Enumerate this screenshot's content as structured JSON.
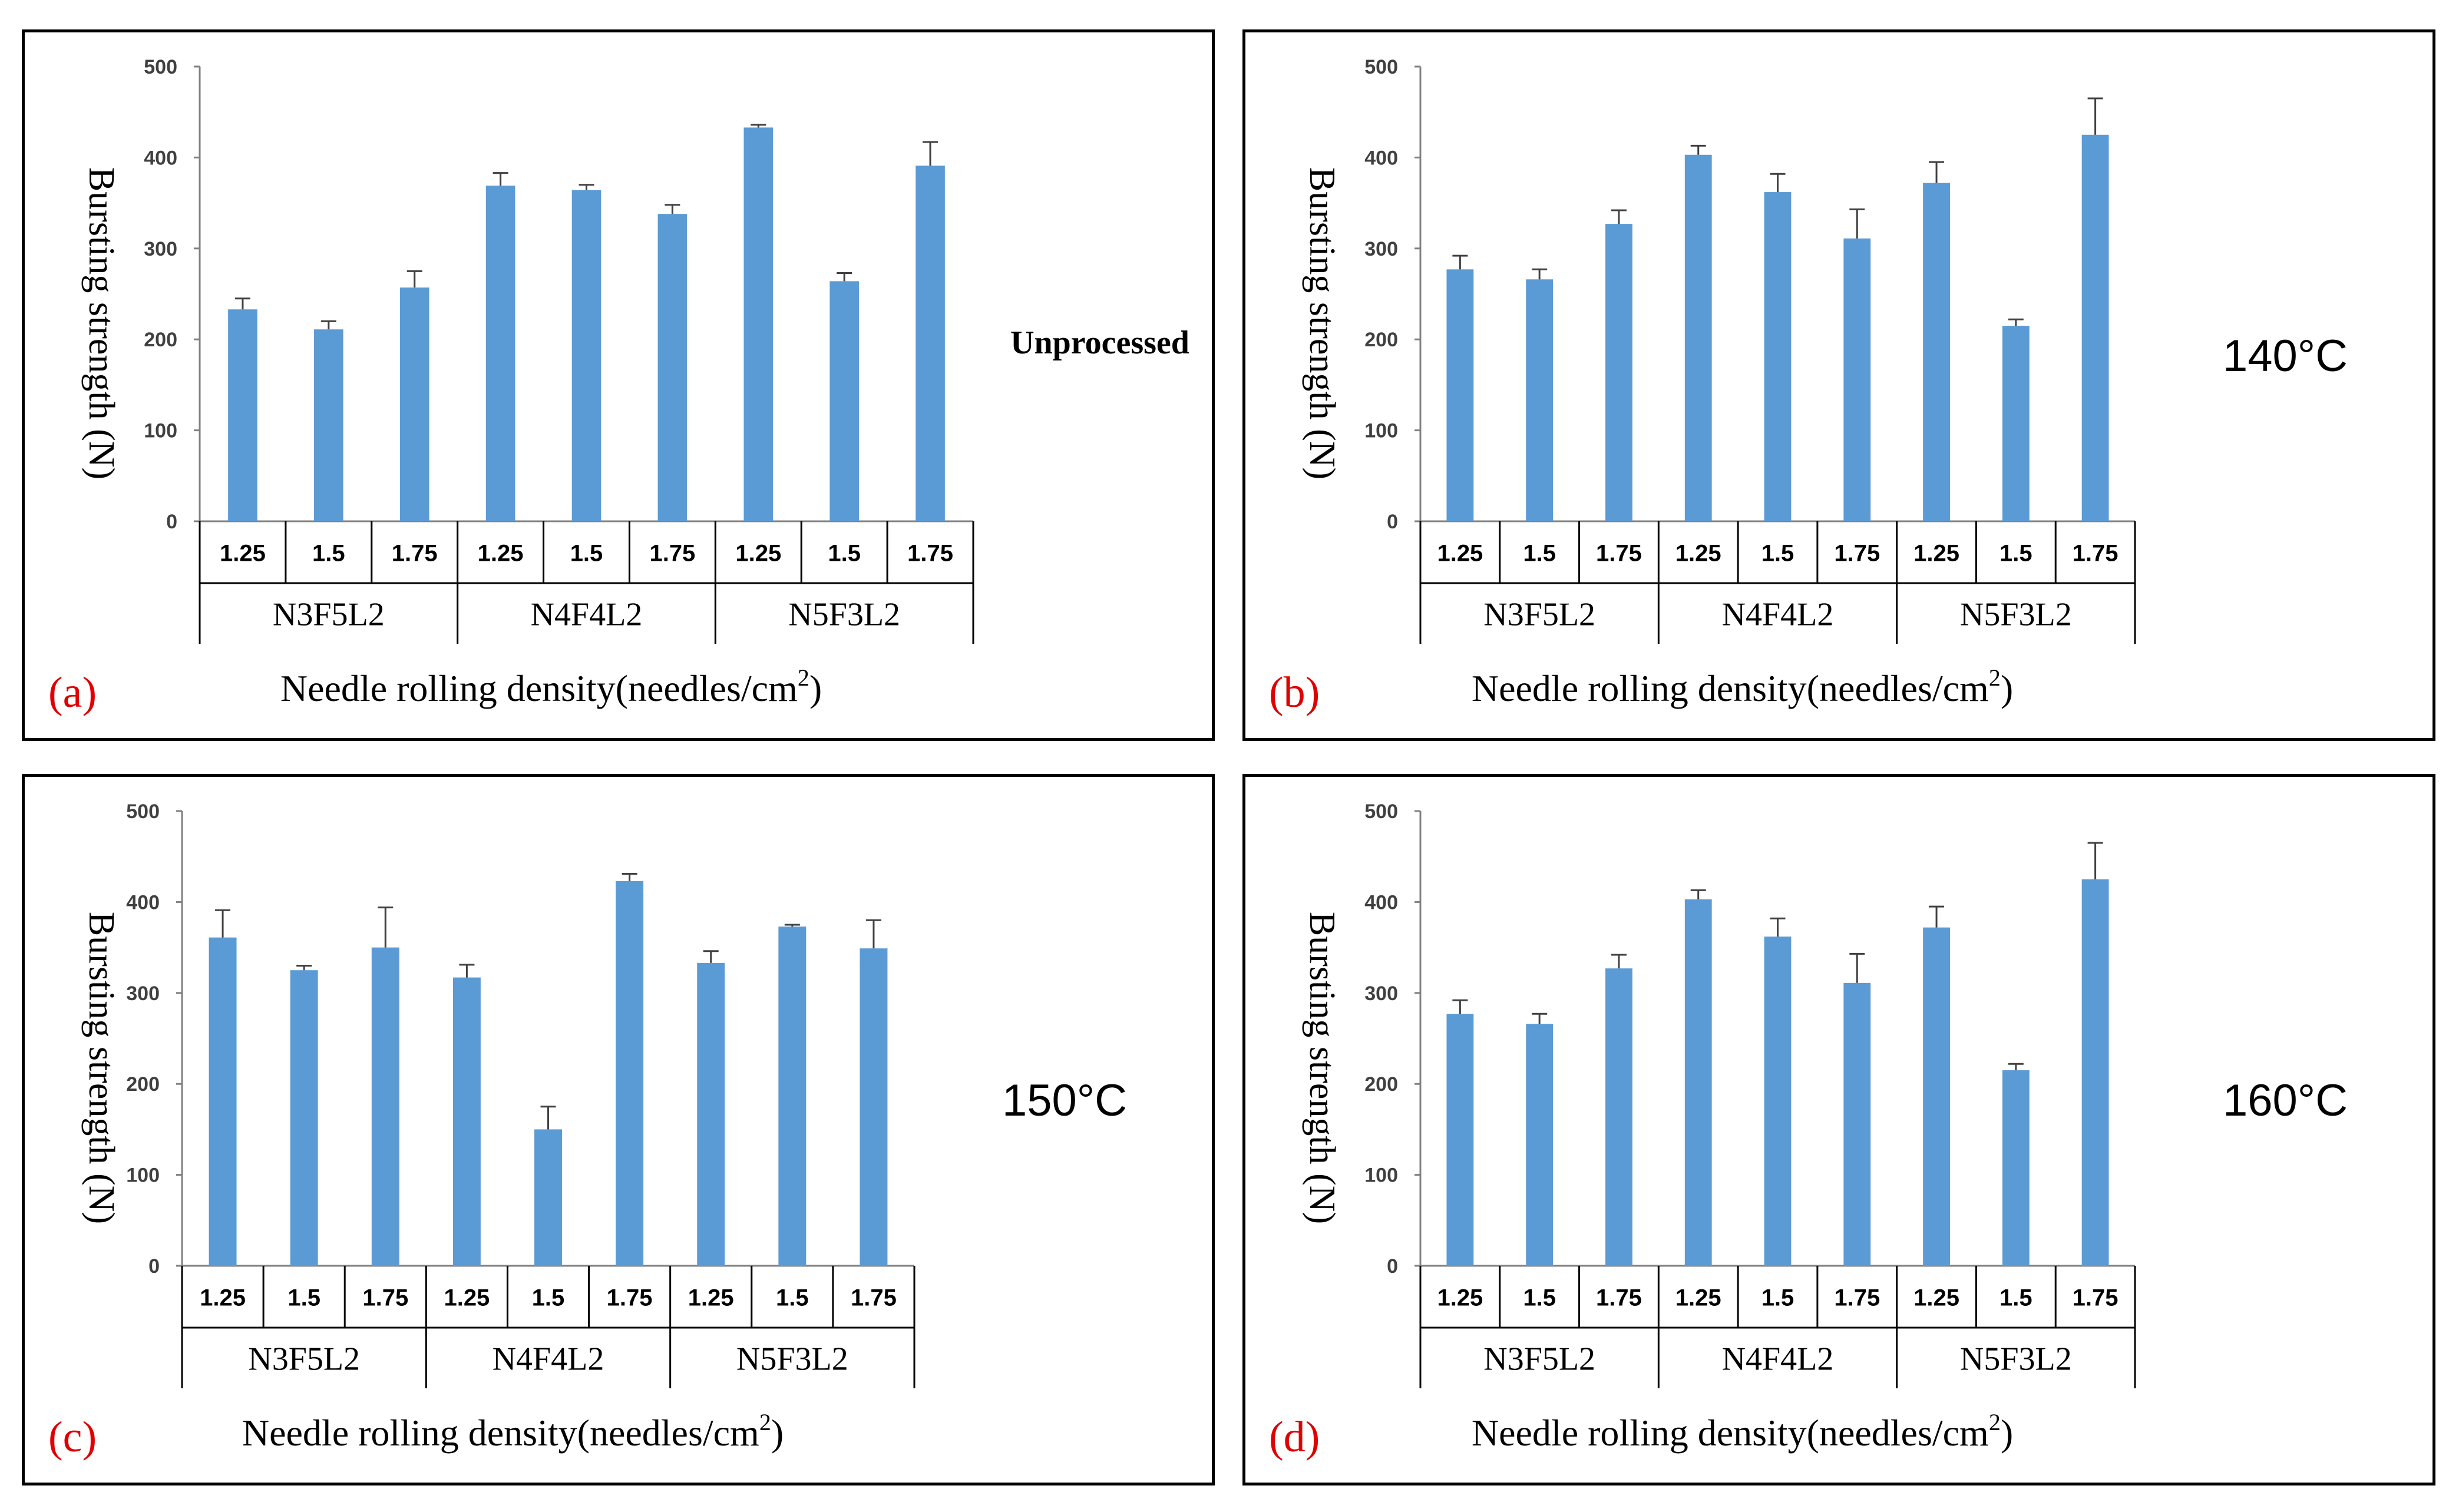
{
  "common": {
    "ylabel": "Bursting strength (N)",
    "xlabel_main": "Needle rolling density(needles/cm",
    "xlabel_sup": "2",
    "xlabel_close": ")",
    "bar_color": "#5b9bd5"
  },
  "chart_data": [
    {
      "type": "bar",
      "panel_label": "(a)",
      "condition": "Unprocessed",
      "ylabel": "Bursting strength (N)",
      "xlabel": "Needle rolling density(needles/cm2)",
      "ylim": [
        0,
        500
      ],
      "yticks": [
        "0",
        "100",
        "200",
        "300",
        "400",
        "500"
      ],
      "groups": [
        "N3F5L2",
        "N4F4L2",
        "N5F3L2"
      ],
      "categories": [
        "1.25",
        "1.5",
        "1.75",
        "1.25",
        "1.5",
        "1.75",
        "1.25",
        "1.5",
        "1.75"
      ],
      "values": [
        233,
        211,
        257,
        369,
        364,
        338,
        433,
        264,
        391
      ],
      "errors": [
        12,
        9,
        18,
        14,
        6,
        10,
        3,
        9,
        26
      ]
    },
    {
      "type": "bar",
      "panel_label": "(b)",
      "condition": "140°C",
      "ylabel": "Bursting strength (N)",
      "xlabel": "Needle rolling density(needles/cm2)",
      "ylim": [
        0,
        500
      ],
      "yticks": [
        "0",
        "100",
        "200",
        "300",
        "400",
        "500"
      ],
      "groups": [
        "N3F5L2",
        "N4F4L2",
        "N5F3L2"
      ],
      "categories": [
        "1.25",
        "1.5",
        "1.75",
        "1.25",
        "1.5",
        "1.75",
        "1.25",
        "1.5",
        "1.75"
      ],
      "values": [
        277,
        266,
        327,
        403,
        362,
        311,
        372,
        215,
        425
      ],
      "errors": [
        15,
        11,
        15,
        10,
        20,
        32,
        23,
        7,
        40
      ]
    },
    {
      "type": "bar",
      "panel_label": "(c)",
      "condition": "150°C",
      "ylabel": "Bursting strength (N)",
      "xlabel": "Needle rolling density(needles/cm2)",
      "ylim": [
        0,
        500
      ],
      "yticks": [
        "0",
        "100",
        "200",
        "300",
        "400",
        "500"
      ],
      "groups": [
        "N3F5L2",
        "N4F4L2",
        "N5F3L2"
      ],
      "categories": [
        "1.25",
        "1.5",
        "1.75",
        "1.25",
        "1.5",
        "1.75",
        "1.25",
        "1.5",
        "1.75"
      ],
      "values": [
        361,
        325,
        350,
        317,
        150,
        423,
        333,
        373,
        349
      ],
      "errors": [
        30,
        5,
        44,
        14,
        25,
        8,
        13,
        2,
        31
      ]
    },
    {
      "type": "bar",
      "panel_label": "(d)",
      "condition": "160°C",
      "ylabel": "Bursting strength (N)",
      "xlabel": "Needle rolling density(needles/cm2)",
      "ylim": [
        0,
        500
      ],
      "yticks": [
        "0",
        "100",
        "200",
        "300",
        "400",
        "500"
      ],
      "groups": [
        "N3F5L2",
        "N4F4L2",
        "N5F3L2"
      ],
      "categories": [
        "1.25",
        "1.5",
        "1.75",
        "1.25",
        "1.5",
        "1.75",
        "1.25",
        "1.5",
        "1.75"
      ],
      "values": [
        277,
        266,
        327,
        403,
        362,
        311,
        372,
        215,
        425
      ],
      "errors": [
        15,
        11,
        15,
        10,
        20,
        32,
        23,
        7,
        40
      ]
    }
  ]
}
